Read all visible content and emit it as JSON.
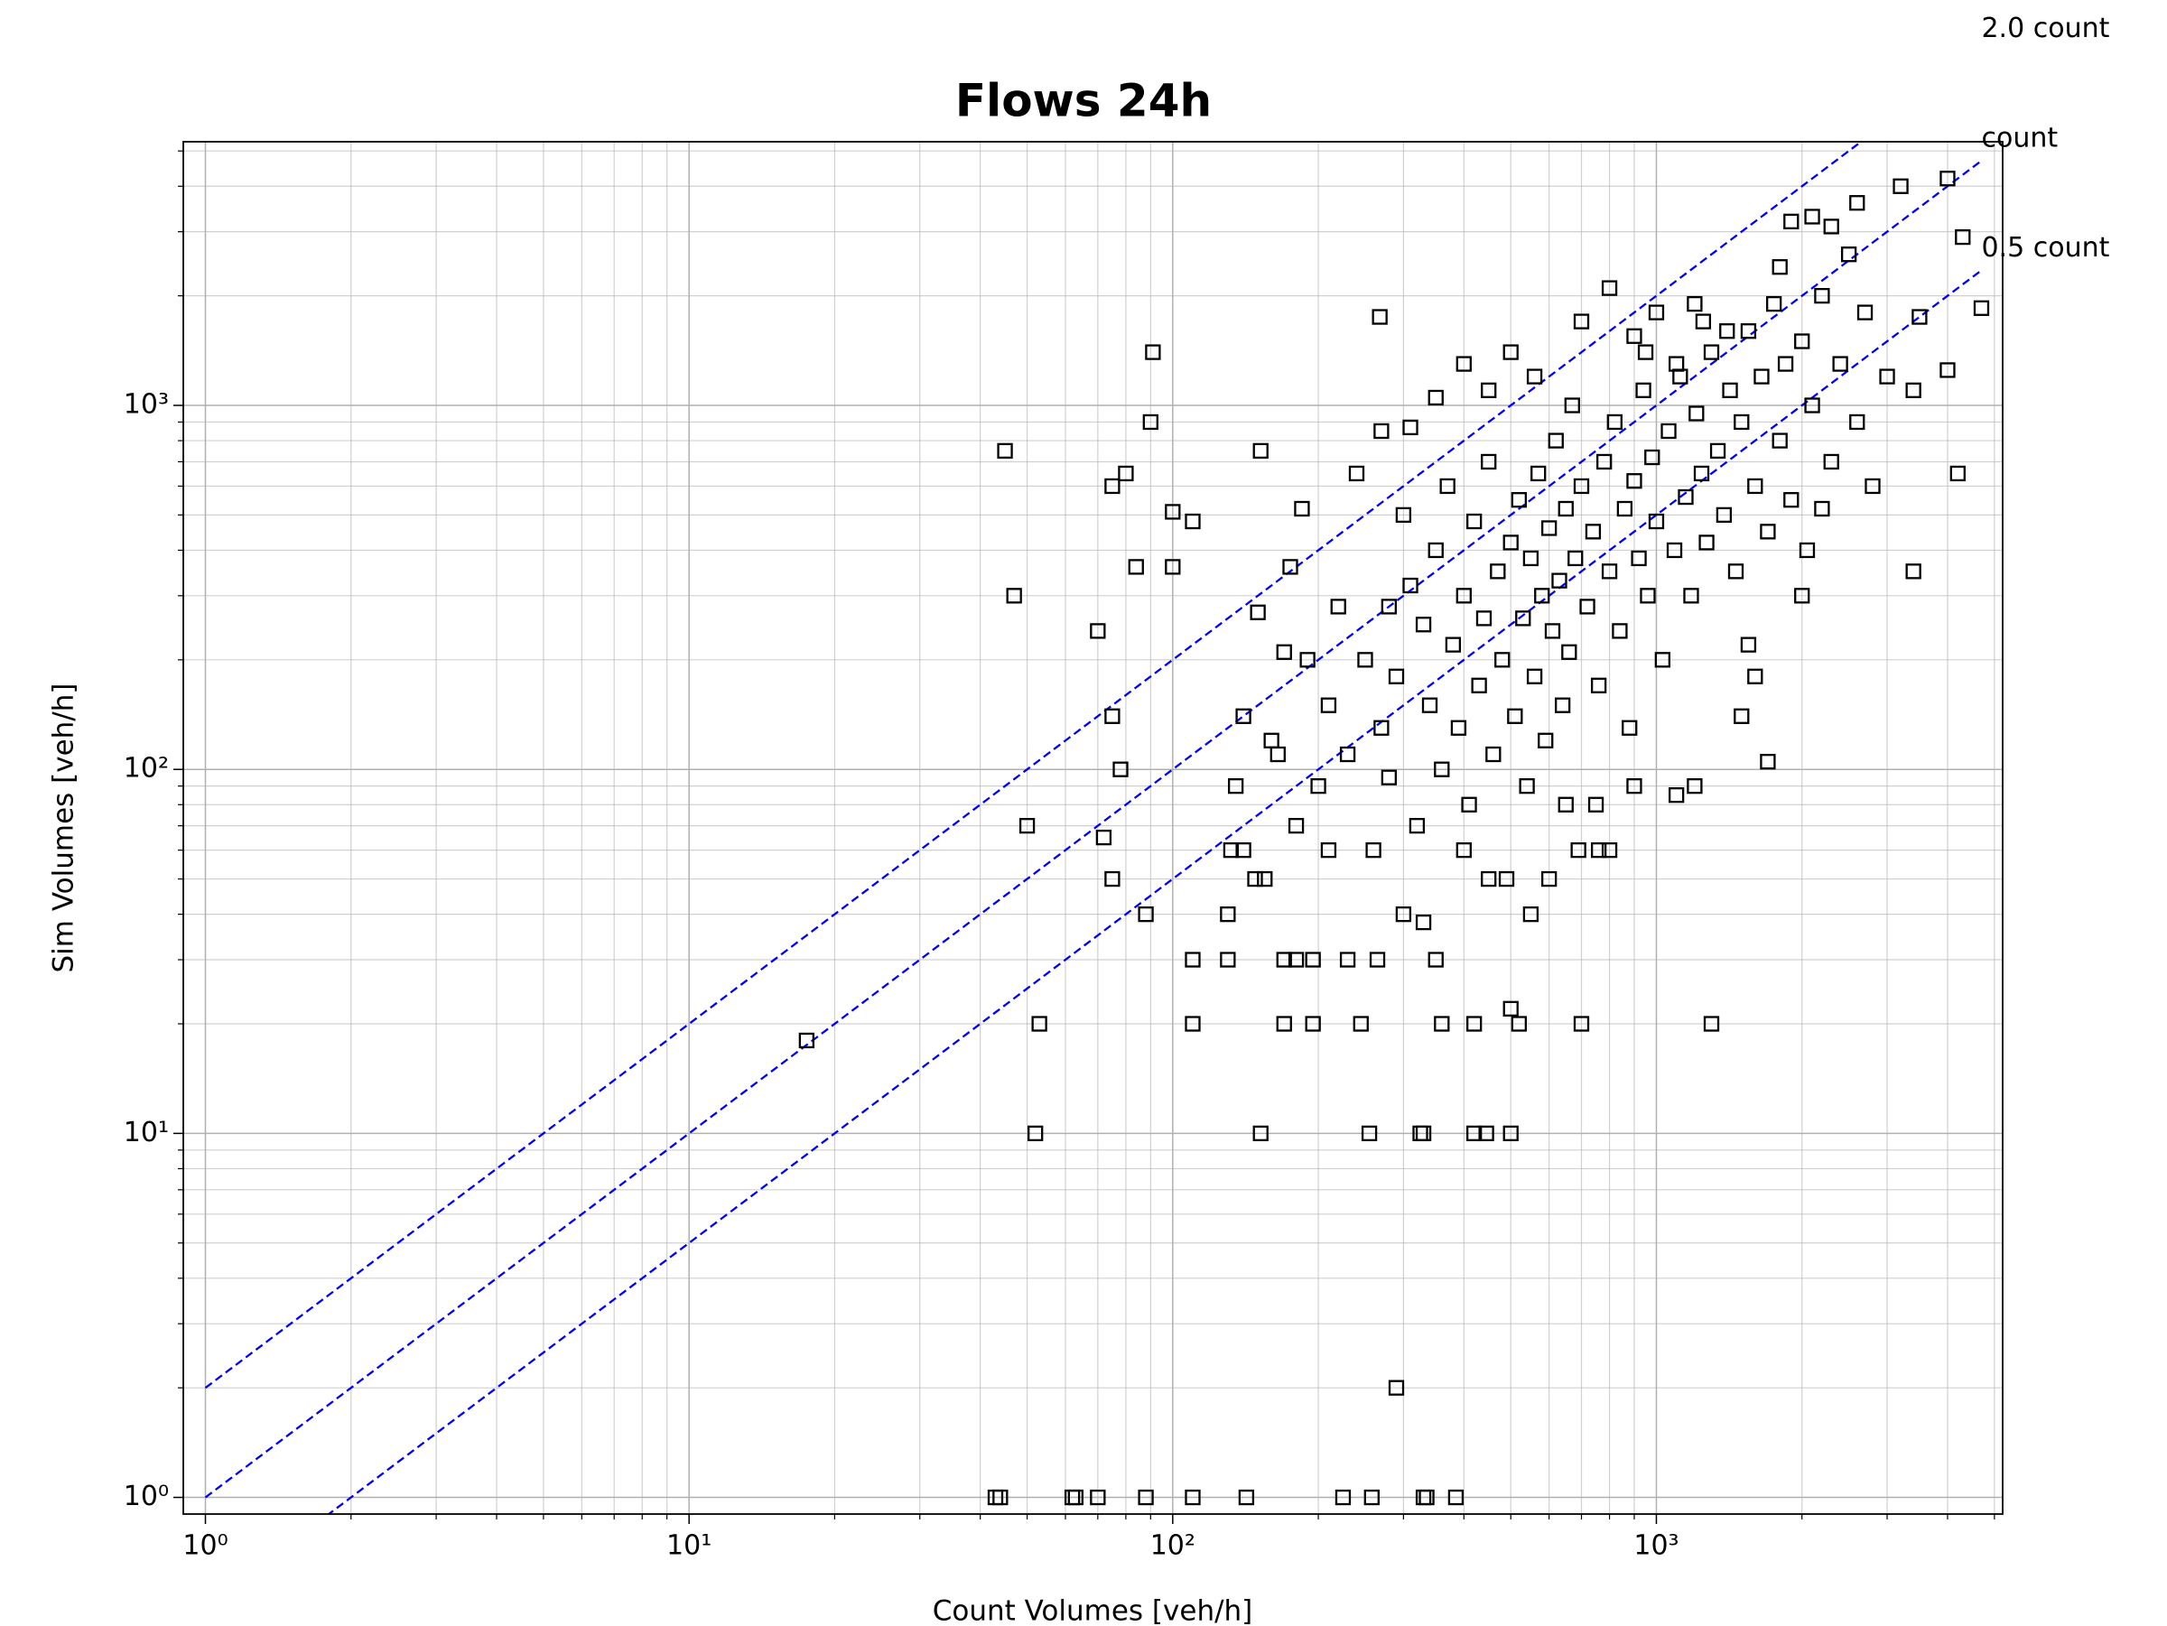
{
  "chart_data": {
    "type": "scatter",
    "title": "Flows 24h",
    "xlabel": "Count Volumes [veh/h]",
    "ylabel": "Sim Volumes [veh/h]",
    "xscale": "log",
    "yscale": "log",
    "grid": true,
    "xlim": [
      0.9,
      5200
    ],
    "ylim": [
      0.9,
      5300
    ],
    "xticks": [
      {
        "value": 1,
        "label": "10⁰"
      },
      {
        "value": 10,
        "label": "10¹"
      },
      {
        "value": 100,
        "label": "10²"
      },
      {
        "value": 1000,
        "label": "10³"
      }
    ],
    "yticks": [
      {
        "value": 1,
        "label": "10⁰"
      },
      {
        "value": 10,
        "label": "10¹"
      },
      {
        "value": 100,
        "label": "10²"
      },
      {
        "value": 1000,
        "label": "10³"
      }
    ],
    "xminorticks": [
      2,
      3,
      4,
      5,
      6,
      7,
      8,
      9,
      20,
      30,
      40,
      50,
      60,
      70,
      80,
      90,
      200,
      300,
      400,
      500,
      600,
      700,
      800,
      900,
      2000,
      3000,
      4000,
      5000
    ],
    "yminorticks": [
      2,
      3,
      4,
      5,
      6,
      7,
      8,
      9,
      20,
      30,
      40,
      50,
      60,
      70,
      80,
      90,
      200,
      300,
      400,
      500,
      600,
      700,
      800,
      900,
      2000,
      3000,
      4000,
      5000
    ],
    "marker_color": "#000000",
    "ref_color": "#0000ff",
    "ref_x": [
      1,
      4700
    ],
    "ref_lines": [
      {
        "label": "2.0 count",
        "factor": 2
      },
      {
        "label": "count",
        "factor": 1
      },
      {
        "label": "0.5 count",
        "factor": 0.5
      }
    ],
    "x": [
      17.5,
      44,
      43,
      62,
      63,
      70,
      88,
      110,
      142,
      225,
      258,
      330,
      335,
      385,
      290,
      52,
      53,
      152,
      255,
      325,
      330,
      420,
      445,
      500,
      45,
      47,
      50,
      70,
      75,
      72,
      75,
      78,
      90,
      91,
      88,
      75,
      80,
      84,
      100,
      100,
      110,
      110,
      110,
      130,
      130,
      132,
      152,
      148,
      155,
      170,
      170,
      180,
      195,
      195,
      268,
      265,
      4000,
      3200,
      4300,
      4700,
      3500,
      3400,
      4000,
      3400,
      4200,
      2600,
      1900,
      1700,
      1300,
      1100,
      1500,
      200,
      210,
      230,
      250,
      260,
      270,
      280,
      290,
      300,
      310,
      320,
      330,
      340,
      350,
      360,
      370,
      380,
      390,
      400,
      410,
      420,
      430,
      440,
      450,
      460,
      470,
      480,
      490,
      500,
      510,
      520,
      530,
      540,
      550,
      560,
      570,
      580,
      590,
      600,
      610,
      620,
      630,
      640,
      650,
      660,
      670,
      680,
      690,
      700,
      720,
      740,
      760,
      780,
      800,
      820,
      840,
      860,
      880,
      900,
      920,
      940,
      960,
      980,
      1000,
      1030,
      1060,
      1090,
      1120,
      1150,
      1180,
      1210,
      1240,
      1270,
      1300,
      1340,
      1380,
      1420,
      1460,
      1500,
      1550,
      1600,
      1650,
      1700,
      1750,
      1800,
      1850,
      1900,
      2000,
      2050,
      2100,
      2200,
      2300,
      2400,
      2500,
      2600,
      2700,
      2800,
      3000,
      2000,
      2200,
      1600,
      1550,
      1200,
      900,
      760,
      600,
      520,
      500,
      420,
      360,
      300,
      230,
      245,
      160,
      170,
      150,
      140,
      175,
      185,
      190,
      220,
      240,
      270,
      310,
      350,
      400,
      450,
      500,
      560,
      800,
      700,
      1000,
      900,
      1200,
      140,
      135,
      165,
      210,
      180,
      280,
      330,
      350,
      400,
      450,
      550,
      650,
      700,
      750,
      800,
      1250,
      1400,
      1800,
      2100,
      2300,
      1100,
      950
    ],
    "values": [
      18,
      1,
      1,
      1,
      1,
      1,
      1,
      1,
      1,
      1,
      1,
      1,
      1,
      1,
      2,
      10,
      20,
      10,
      10,
      10,
      10,
      10,
      10,
      10,
      750,
      300,
      70,
      240,
      50,
      65,
      140,
      100,
      900,
      1400,
      40,
      600,
      650,
      360,
      360,
      510,
      480,
      30,
      20,
      40,
      30,
      60,
      750,
      50,
      50,
      30,
      20,
      30,
      20,
      30,
      1750,
      30,
      4200,
      4000,
      2900,
      1850,
      1750,
      1100,
      1250,
      350,
      650,
      3600,
      3200,
      105,
      20,
      85,
      140,
      90,
      150,
      110,
      200,
      60,
      130,
      280,
      180,
      500,
      320,
      70,
      250,
      150,
      400,
      100,
      600,
      220,
      130,
      300,
      80,
      480,
      170,
      260,
      700,
      110,
      350,
      200,
      50,
      420,
      140,
      550,
      260,
      90,
      380,
      180,
      650,
      300,
      120,
      460,
      240,
      800,
      330,
      150,
      520,
      210,
      1000,
      380,
      60,
      600,
      280,
      450,
      170,
      700,
      350,
      900,
      240,
      520,
      130,
      620,
      380,
      1100,
      300,
      720,
      480,
      200,
      850,
      400,
      1200,
      560,
      300,
      950,
      650,
      420,
      1400,
      750,
      500,
      1100,
      350,
      900,
      1600,
      600,
      1200,
      450,
      1900,
      800,
      1300,
      550,
      1500,
      400,
      1000,
      2000,
      700,
      1300,
      2600,
      900,
      1800,
      600,
      1200,
      300,
      520,
      180,
      220,
      90,
      90,
      60,
      50,
      20,
      22,
      20,
      20,
      40,
      30,
      20,
      120,
      210,
      270,
      140,
      360,
      520,
      200,
      280,
      650,
      850,
      870,
      1050,
      1300,
      1100,
      1400,
      1200,
      2100,
      1700,
      1800,
      1550,
      1900,
      60,
      90,
      110,
      60,
      70,
      95,
      38,
      30,
      60,
      50,
      40,
      80,
      20,
      80,
      60,
      1700,
      1600,
      2400,
      3300,
      3100,
      1300,
      1400
    ]
  }
}
